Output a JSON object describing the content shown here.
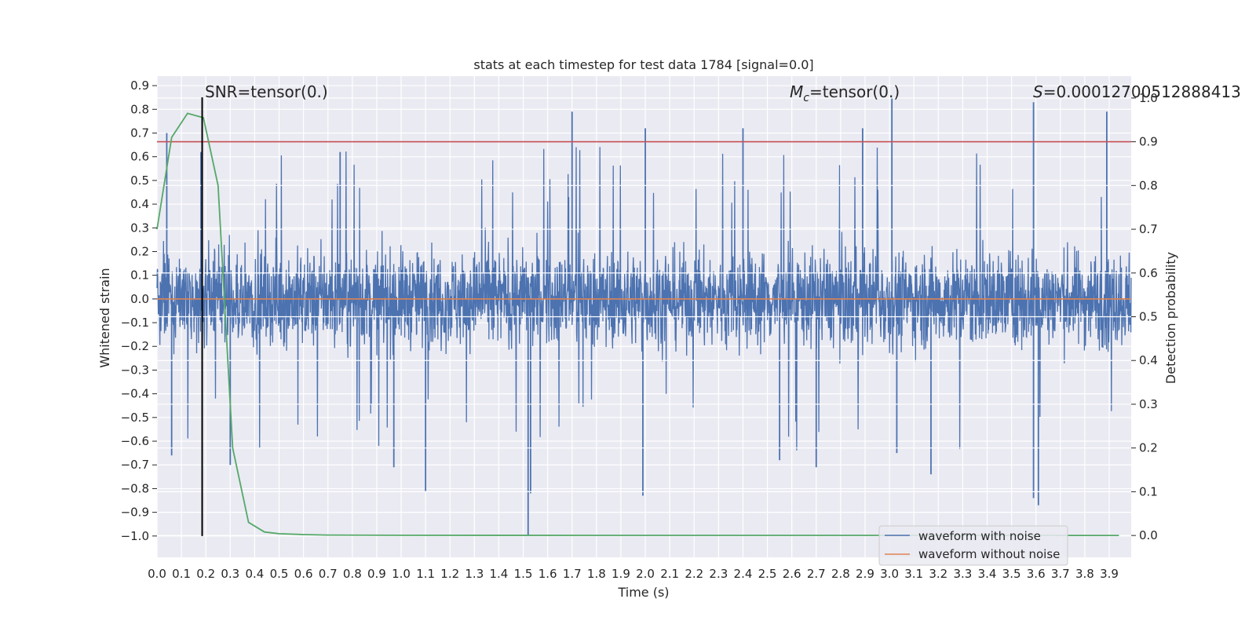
{
  "chart_data": {
    "type": "line",
    "title": "stats at each timestep for test data 1784 [signal=0.0]",
    "xlabel": "Time (s)",
    "ylabel": "Whitened strain",
    "y2label": "Detection probability",
    "xlim": [
      0.0,
      3.99
    ],
    "ylim": [
      -1.09,
      0.94
    ],
    "y2lim": [
      -0.05,
      1.05
    ],
    "xticks": [
      "0.0",
      "0.1",
      "0.2",
      "0.3",
      "0.4",
      "0.5",
      "0.6",
      "0.7",
      "0.8",
      "0.9",
      "1.0",
      "1.1",
      "1.2",
      "1.3",
      "1.4",
      "1.5",
      "1.6",
      "1.7",
      "1.8",
      "1.9",
      "2.0",
      "2.1",
      "2.2",
      "2.3",
      "2.4",
      "2.5",
      "2.6",
      "2.7",
      "2.8",
      "2.9",
      "3.0",
      "3.1",
      "3.2",
      "3.3",
      "3.4",
      "3.5",
      "3.6",
      "3.7",
      "3.8",
      "3.9"
    ],
    "yticks": [
      "0.9",
      "0.8",
      "0.7",
      "0.6",
      "0.5",
      "0.4",
      "0.3",
      "0.2",
      "0.1",
      "0.0",
      "−0.1",
      "−0.2",
      "−0.3",
      "−0.4",
      "−0.5",
      "−0.6",
      "−0.7",
      "−0.8",
      "−0.9",
      "−1.0"
    ],
    "y2ticks": [
      "0.0",
      "0.1",
      "0.2",
      "0.3",
      "0.4",
      "0.5",
      "0.6",
      "0.7",
      "0.8",
      "0.9",
      "1.0"
    ],
    "annotations": {
      "snr_label": "SNR=tensor(0.)",
      "mc_symbol": "M",
      "mc_sub": "c",
      "mc_value": "=tensor(0.)",
      "s_symbol": "S",
      "s_value": "=0.00012700512888413"
    },
    "marker_time": 0.185,
    "threshold_probability": 0.9,
    "series": [
      {
        "name": "waveform with noise",
        "color": "#4c72b0",
        "axis": "left",
        "description": "noise-like whitened strain, amplitude roughly within ±0.3, spikes to +0.85 and -1.0",
        "envelope": {
          "lower": -0.3,
          "upper": 0.3
        },
        "spikes": [
          {
            "t": 0.04,
            "v": 0.7
          },
          {
            "t": 0.06,
            "v": -0.66
          },
          {
            "t": 0.18,
            "v": 0.62
          },
          {
            "t": 0.3,
            "v": -0.7
          },
          {
            "t": 0.75,
            "v": 0.62
          },
          {
            "t": 0.97,
            "v": -0.71
          },
          {
            "t": 1.1,
            "v": -0.81
          },
          {
            "t": 1.52,
            "v": -1.0
          },
          {
            "t": 1.53,
            "v": -0.82
          },
          {
            "t": 1.7,
            "v": 0.79
          },
          {
            "t": 1.99,
            "v": -0.83
          },
          {
            "t": 2.0,
            "v": 0.72
          },
          {
            "t": 2.4,
            "v": 0.72
          },
          {
            "t": 2.55,
            "v": -0.68
          },
          {
            "t": 2.7,
            "v": -0.71
          },
          {
            "t": 2.89,
            "v": 0.72
          },
          {
            "t": 3.01,
            "v": 0.85
          },
          {
            "t": 3.03,
            "v": -0.65
          },
          {
            "t": 3.17,
            "v": -0.74
          },
          {
            "t": 3.59,
            "v": 0.83
          },
          {
            "t": 3.59,
            "v": -0.84
          },
          {
            "t": 3.61,
            "v": -0.87
          },
          {
            "t": 3.89,
            "v": 0.79
          }
        ]
      },
      {
        "name": "waveform without noise",
        "color": "#dd8452",
        "axis": "left",
        "x": [
          0.0,
          3.99
        ],
        "values": [
          0.0,
          0.0
        ]
      },
      {
        "name": "detection probability",
        "color": "#55a868",
        "axis": "right",
        "x": [
          0.0,
          0.06,
          0.125,
          0.19,
          0.25,
          0.31,
          0.375,
          0.44,
          0.5,
          0.6,
          0.7,
          1.0,
          2.0,
          3.0,
          3.94
        ],
        "values": [
          0.7,
          0.91,
          0.965,
          0.955,
          0.8,
          0.2,
          0.03,
          0.008,
          0.004,
          0.002,
          0.001,
          0.0005,
          0.0003,
          0.0002,
          0.0001
        ]
      }
    ],
    "legend": {
      "placement": "lower-right",
      "entries": [
        {
          "label": "waveform with noise",
          "color": "#4c72b0"
        },
        {
          "label": "waveform without noise",
          "color": "#dd8452"
        }
      ]
    }
  }
}
